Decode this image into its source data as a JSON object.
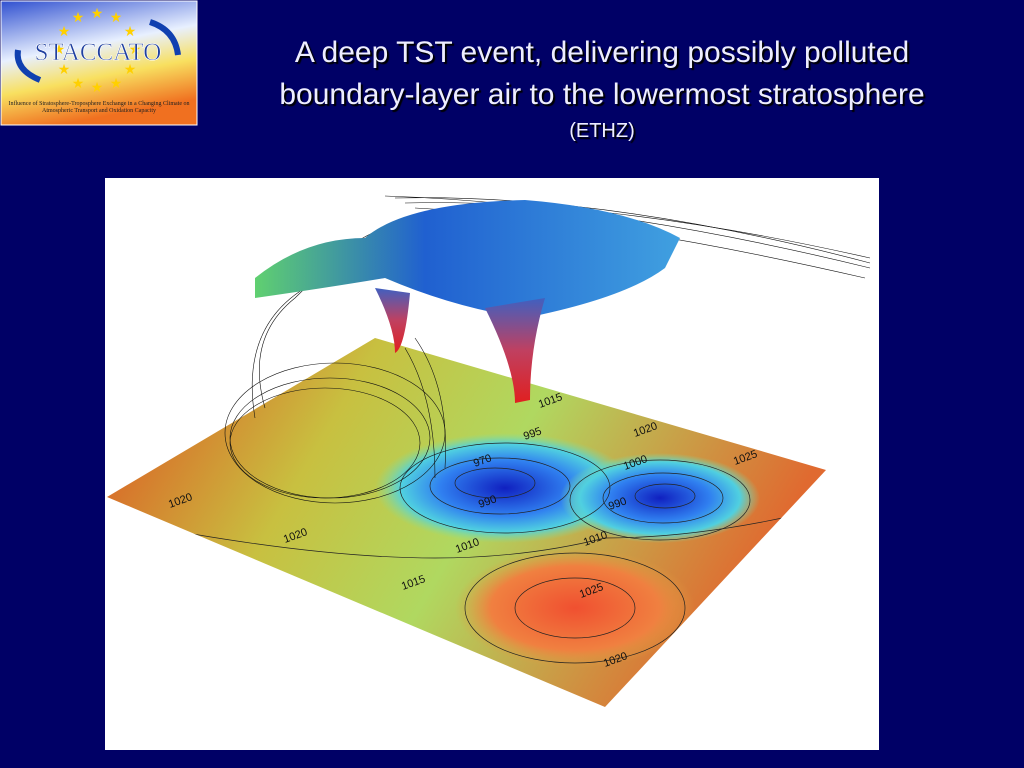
{
  "logo": {
    "name": "STACCATO",
    "caption": "Influence of Stratosphere-Troposphere Exchange in a Changing Climate on Atmospheric Transport and Oxidation Capacity"
  },
  "title": {
    "lines": [
      "A deep TST event, delivering possibly polluted",
      "boundary-layer air to the lowermost stratosphere"
    ],
    "source": "(ETHZ)"
  },
  "figure": {
    "contour_labels": [
      "1015",
      "995",
      "1020",
      "1025",
      "970",
      "1000",
      "990",
      "990",
      "1020",
      "1020",
      "1010",
      "1010",
      "1015",
      "1025",
      "1020"
    ]
  }
}
